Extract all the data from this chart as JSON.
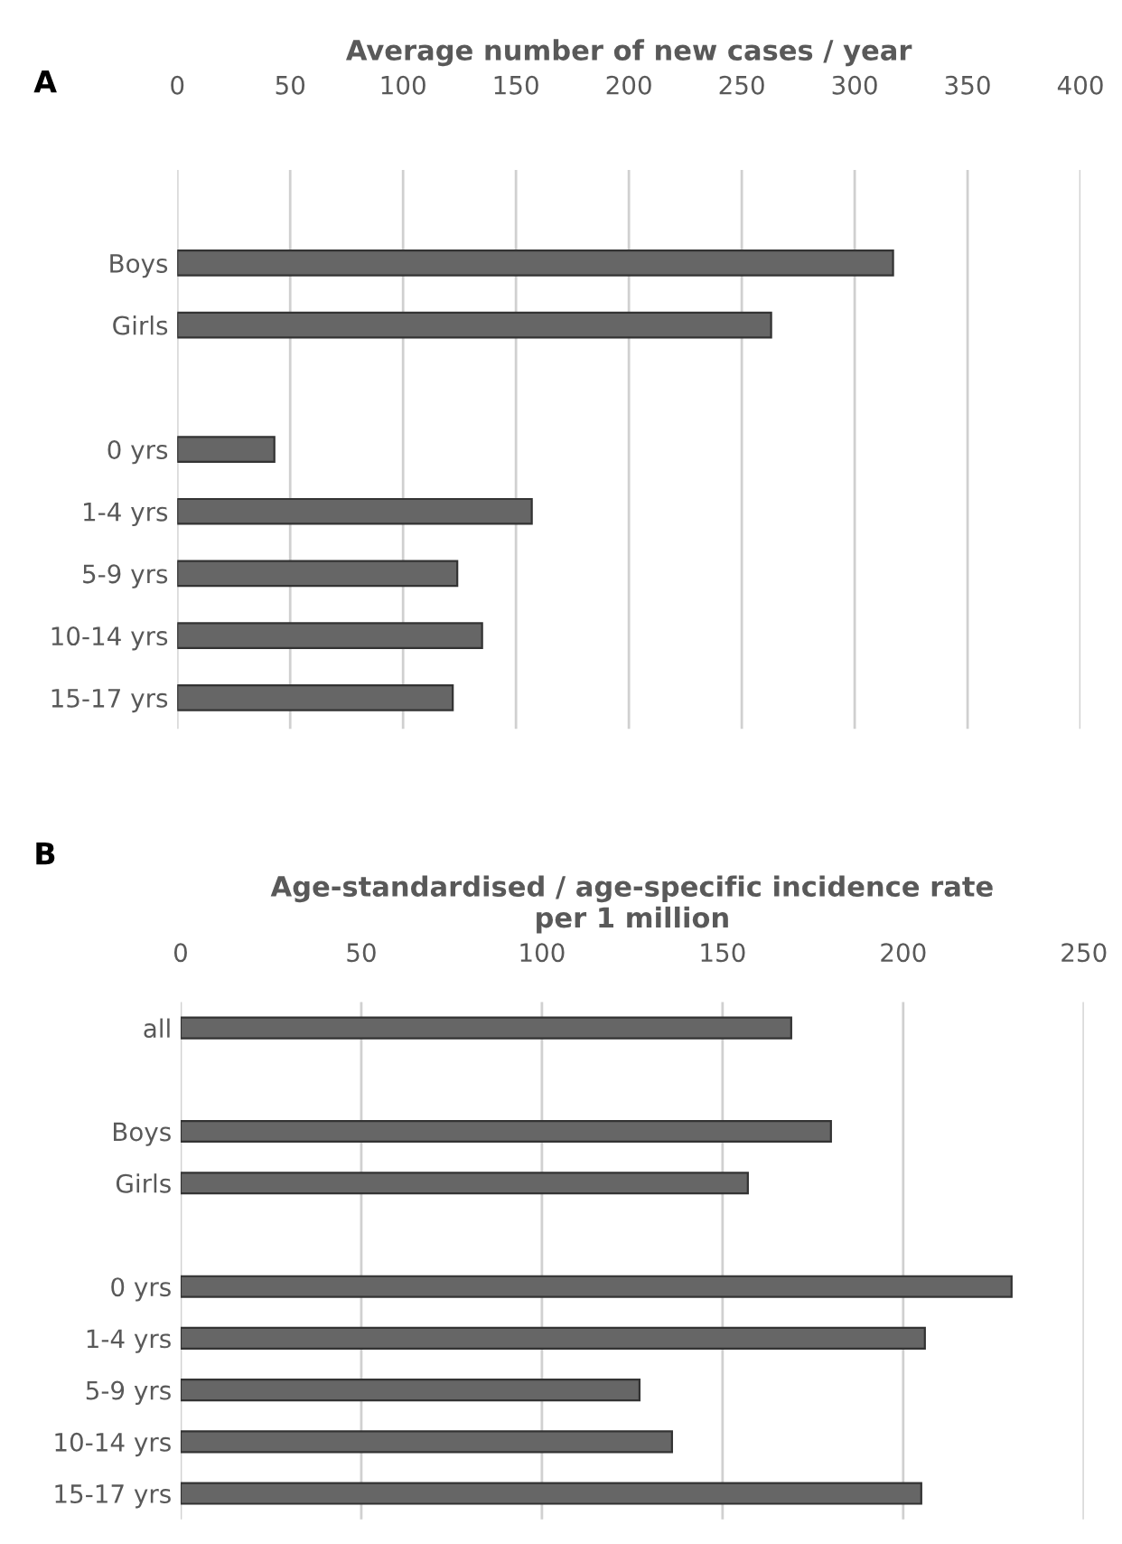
{
  "chart_data": [
    {
      "type": "bar",
      "orientation": "horizontal",
      "xlabel": "Average number of new cases / year",
      "annotations": [
        "A"
      ],
      "categories": [
        null,
        "Boys",
        "Girls",
        null,
        "0 yrs",
        "1-4 yrs",
        "5-9 yrs",
        "10-14 yrs",
        "15-17 yrs"
      ],
      "values": [
        null,
        317,
        263,
        null,
        43,
        157,
        124,
        135,
        122
      ],
      "color": "#666666",
      "xlim": [
        0,
        400
      ],
      "xticks": [
        0,
        50,
        100,
        150,
        200,
        250,
        300,
        350,
        400
      ],
      "grid": "x"
    },
    {
      "type": "bar",
      "orientation": "horizontal",
      "xlabel": "Age-standardised / age-specific incidence rate\nper 1 million",
      "annotations": [
        "B"
      ],
      "categories": [
        "all",
        null,
        "Boys",
        "Girls",
        null,
        "0 yrs",
        "1-4 yrs",
        "5-9 yrs",
        "10-14 yrs",
        "15-17 yrs"
      ],
      "values": [
        169,
        null,
        180,
        157,
        null,
        230,
        206,
        127,
        136,
        205
      ],
      "color": "#666666",
      "xlim": [
        0,
        250
      ],
      "xticks": [
        0,
        50,
        100,
        150,
        200,
        250
      ],
      "grid": "x"
    }
  ]
}
